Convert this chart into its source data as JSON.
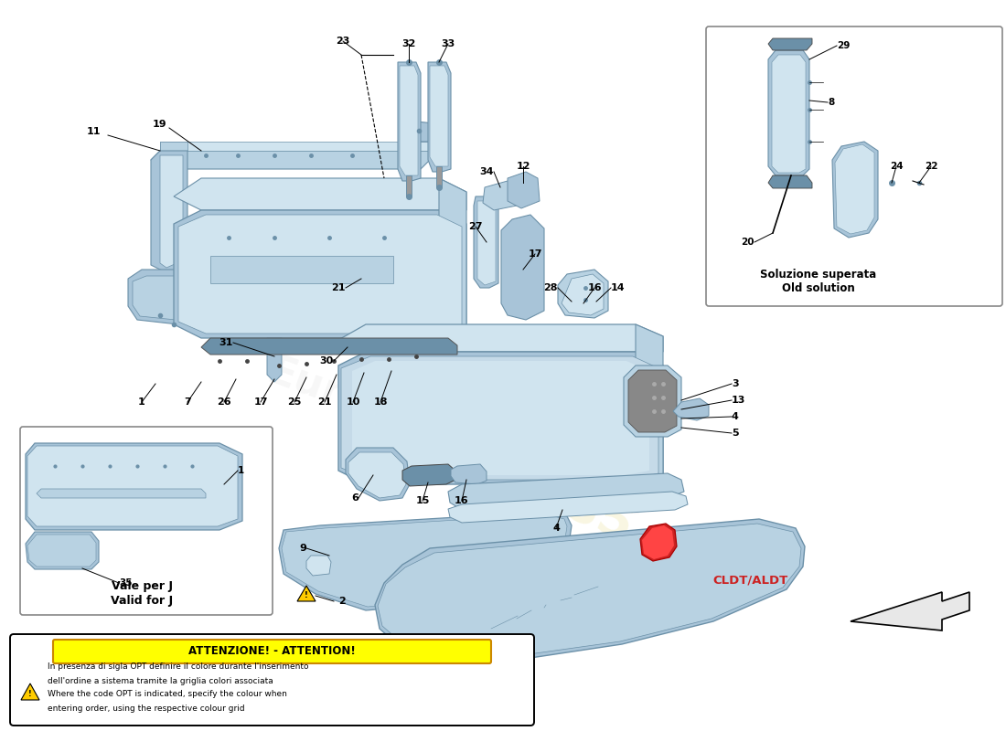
{
  "bg_color": "#ffffff",
  "part_color": "#a8c4d8",
  "part_dark": "#6b90a8",
  "part_light": "#d0e4ef",
  "part_mid": "#b8d2e2",
  "watermark_color": "#ddd060",
  "red_accent": "#cc2222",
  "attention_bg": "#ffff00",
  "box_border": "#888888",
  "inset_tr_label": "Soluzione superata\nOld solution",
  "inset_bl_label1": "Vale per J",
  "inset_bl_label2": "Valid for J",
  "cldt_label": "CLDT/ALDT",
  "attention_title": "ATTENZIONE! - ATTENTION!",
  "attention_lines": [
    "In presenza di sigla OPT definire il colore durante l'inserimento",
    "dell'ordine a sistema tramite la griglia colori associata",
    "Where the code OPT is indicated, specify the colour when",
    "entering order, using the respective colour grid"
  ]
}
